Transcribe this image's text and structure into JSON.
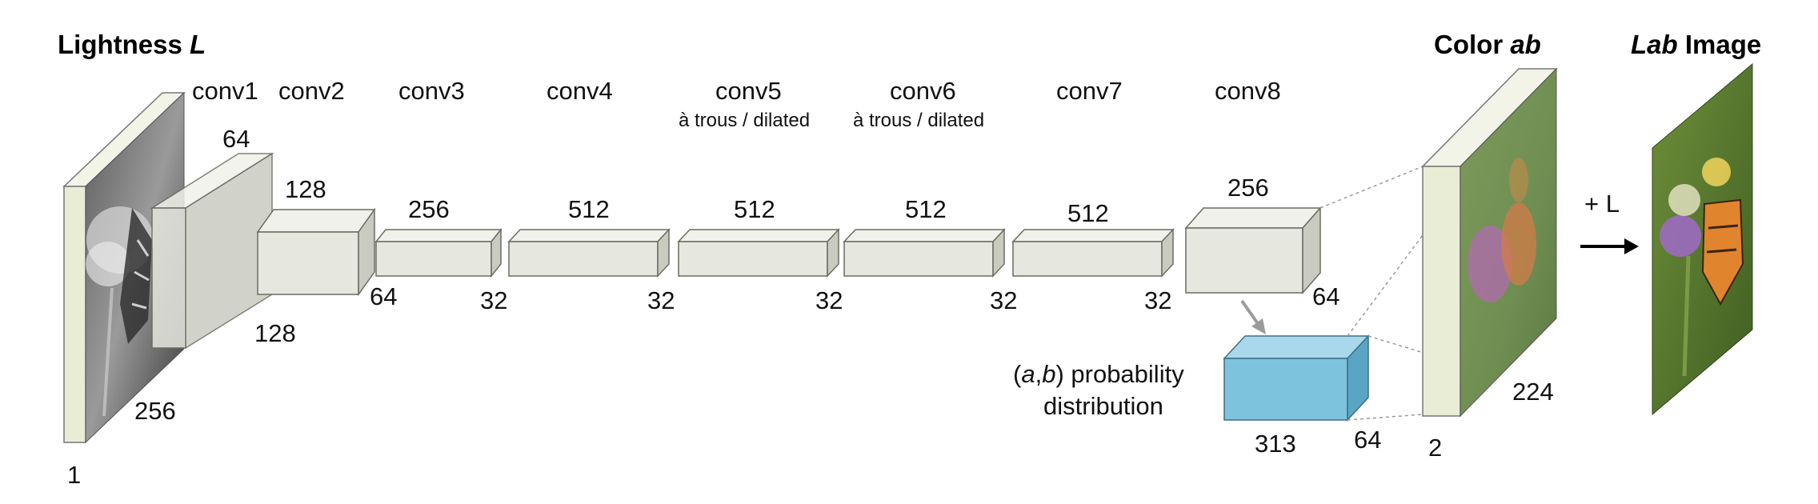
{
  "inputs": {
    "lightness_title_prefix": "Lightness ",
    "lightness_title_var": "L",
    "color_title_prefix": "Color ",
    "color_title_var": "ab",
    "lab_title_var": "Lab",
    "lab_title_suffix": " Image"
  },
  "layers": [
    {
      "name": "conv1",
      "depth": "64",
      "side": "128"
    },
    {
      "name": "conv2",
      "depth": "128",
      "side": "64"
    },
    {
      "name": "conv3",
      "depth": "256",
      "side": "32"
    },
    {
      "name": "conv4",
      "depth": "512",
      "side": "32"
    },
    {
      "name": "conv5",
      "note": "à trous / dilated",
      "depth": "512",
      "side": "32"
    },
    {
      "name": "conv6",
      "note": "à trous / dilated",
      "depth": "512",
      "side": "32"
    },
    {
      "name": "conv7",
      "depth": "512",
      "side": "32"
    },
    {
      "name": "conv8",
      "depth": "256",
      "side": "64"
    }
  ],
  "input_dims": {
    "side": "256",
    "channels": "1"
  },
  "output_dims": {
    "side": "224",
    "channels": "2"
  },
  "probability": {
    "label_open": "(",
    "label_a": "a",
    "label_comma": ",",
    "label_b": "b",
    "label_rest": ") probability",
    "label_line2": "distribution",
    "depth": "313",
    "side": "64"
  },
  "plus_l": "+ L",
  "colors": {
    "block_front": "#e6e7df",
    "block_top": "#f0f1ea",
    "block_side": "#c9cbc1",
    "block_stroke": "#6b6d60",
    "prob_front": "#7ec3de",
    "prob_top": "#a9d8ec",
    "prob_side": "#5aa5c4",
    "plate_face": "#e9edd6"
  }
}
